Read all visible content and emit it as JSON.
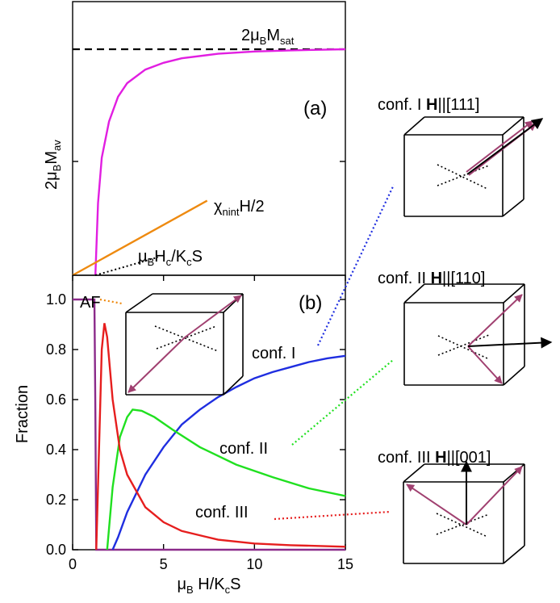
{
  "chart_data": [
    {
      "panel": "(a)",
      "type": "line",
      "ylabel": "2μBMav",
      "reference_line": {
        "label": "2μBMsat",
        "style": "dashed",
        "y_value": 1.0
      },
      "series": [
        {
          "key": "mav",
          "color": "#e11ee1",
          "points": [
            [
              1.25,
              0.0
            ],
            [
              1.4,
              0.32
            ],
            [
              1.6,
              0.52
            ],
            [
              2.0,
              0.68
            ],
            [
              2.5,
              0.79
            ],
            [
              3.0,
              0.85
            ],
            [
              4.0,
              0.91
            ],
            [
              5.0,
              0.94
            ],
            [
              6.0,
              0.96
            ],
            [
              8.0,
              0.98
            ],
            [
              10.0,
              0.99
            ],
            [
              12.0,
              0.995
            ],
            [
              15.0,
              1.0
            ]
          ]
        },
        {
          "key": "chi",
          "label": "χnintH/2",
          "color": "#ee8a10",
          "points": [
            [
              0,
              0
            ],
            [
              7.4,
              0.33
            ]
          ]
        },
        {
          "key": "hc",
          "label": "μBHc/KcS",
          "style": "dotted",
          "color": "#000000",
          "points": [
            [
              1.25,
              0
            ],
            [
              4.7,
              0.08
            ]
          ]
        }
      ]
    },
    {
      "panel": "(b)",
      "type": "line",
      "xlabel": "μB H/KcS",
      "ylabel": "Fraction",
      "xlim": [
        0,
        15
      ],
      "ylim": [
        0,
        1.1
      ],
      "x_ticks": [
        "0",
        "5",
        "10",
        "15"
      ],
      "y_ticks": [
        "0.0",
        "0.2",
        "0.4",
        "0.6",
        "0.8",
        "1.0"
      ],
      "series": [
        {
          "key": "af",
          "label": "AF",
          "color": "#8b2a8a",
          "points": [
            [
              0,
              1.0
            ],
            [
              1.2,
              1.0
            ],
            [
              1.25,
              0.55
            ],
            [
              1.3,
              0.0
            ],
            [
              15,
              0.0
            ]
          ]
        },
        {
          "key": "c1",
          "label": "conf. I",
          "color": "#1f2ee0",
          "points": [
            [
              2.2,
              0.0
            ],
            [
              2.5,
              0.05
            ],
            [
              3.0,
              0.15
            ],
            [
              4.0,
              0.3
            ],
            [
              5.0,
              0.41
            ],
            [
              6.0,
              0.5
            ],
            [
              7.0,
              0.56
            ],
            [
              8.0,
              0.61
            ],
            [
              9.0,
              0.65
            ],
            [
              10.0,
              0.685
            ],
            [
              11.0,
              0.71
            ],
            [
              12.0,
              0.73
            ],
            [
              13.0,
              0.75
            ],
            [
              14.0,
              0.765
            ],
            [
              15.0,
              0.775
            ]
          ]
        },
        {
          "key": "c2",
          "label": "conf. II",
          "color": "#20e020",
          "points": [
            [
              1.9,
              0.0
            ],
            [
              2.2,
              0.25
            ],
            [
              2.6,
              0.45
            ],
            [
              3.0,
              0.53
            ],
            [
              3.3,
              0.56
            ],
            [
              3.8,
              0.555
            ],
            [
              4.5,
              0.53
            ],
            [
              5.5,
              0.48
            ],
            [
              7.0,
              0.41
            ],
            [
              9.0,
              0.34
            ],
            [
              11.0,
              0.29
            ],
            [
              13.0,
              0.245
            ],
            [
              15.0,
              0.215
            ]
          ]
        },
        {
          "key": "c3",
          "label": "conf. III",
          "color": "#e61e1e",
          "points": [
            [
              1.3,
              0.0
            ],
            [
              1.45,
              0.4
            ],
            [
              1.6,
              0.8
            ],
            [
              1.75,
              0.905
            ],
            [
              1.9,
              0.85
            ],
            [
              2.2,
              0.6
            ],
            [
              2.6,
              0.4
            ],
            [
              3.0,
              0.3
            ],
            [
              4.0,
              0.17
            ],
            [
              5.0,
              0.11
            ],
            [
              6.0,
              0.075
            ],
            [
              8.0,
              0.04
            ],
            [
              10.0,
              0.025
            ],
            [
              12.0,
              0.018
            ],
            [
              15.0,
              0.012
            ]
          ]
        }
      ]
    }
  ],
  "cube_labels": {
    "conf1": {
      "prefix": "conf. I ",
      "bold": "H",
      "suffix": "||[111]"
    },
    "conf2": {
      "prefix": "conf. II ",
      "bold": "H",
      "suffix": "||[110]"
    },
    "conf3": {
      "prefix": "conf. III ",
      "bold": "H",
      "suffix": "||[001]"
    }
  },
  "colors": {
    "spin": "#a04070",
    "connector_c1": "#1f2ee0",
    "connector_c2": "#20e020",
    "connector_c3": "#e61e1e",
    "connector_af": "#ee8a10"
  }
}
